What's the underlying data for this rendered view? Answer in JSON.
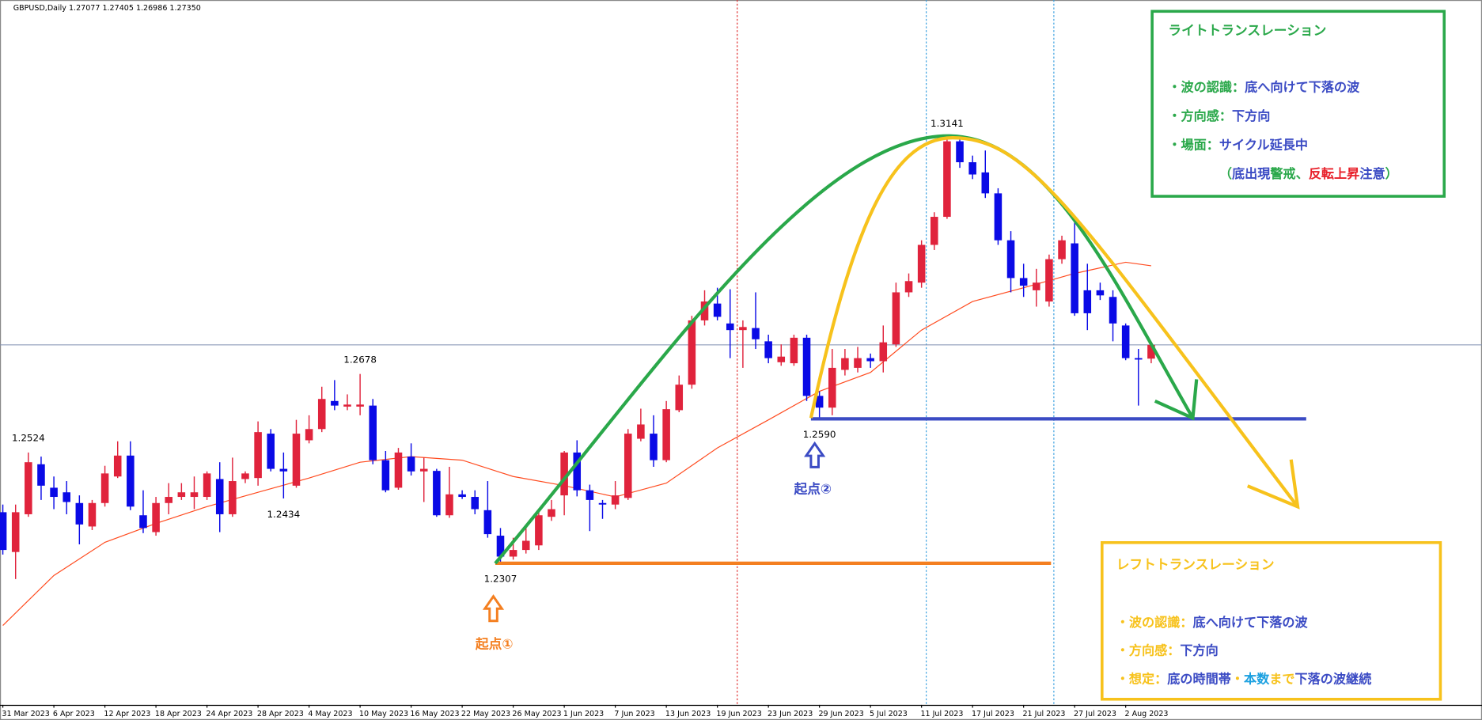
{
  "chart_data": {
    "type": "candlestick",
    "title": "GBPUSD,Daily  1.27077 1.27405 1.26986 1.27350",
    "categories": [
      "31 Mar 2023",
      null,
      null,
      null,
      "6 Apr 2023",
      null,
      null,
      null,
      "12 Apr 2023",
      null,
      null,
      null,
      "18 Apr 2023",
      null,
      null,
      null,
      "24 Apr 2023",
      null,
      null,
      null,
      "28 Apr 2023",
      null,
      null,
      null,
      "4 May 2023",
      null,
      null,
      null,
      "10 May 2023",
      null,
      null,
      null,
      "16 May 2023",
      null,
      null,
      null,
      "22 May 2023",
      null,
      null,
      null,
      "26 May 2023",
      null,
      null,
      null,
      "1 Jun 2023",
      null,
      null,
      null,
      "7 Jun 2023",
      null,
      null,
      null,
      "13 Jun 2023",
      null,
      null,
      null,
      "19 Jun 2023",
      null,
      null,
      null,
      "23 Jun 2023",
      null,
      null,
      null,
      "29 Jun 2023",
      null,
      null,
      null,
      "5 Jul 2023",
      null,
      null,
      null,
      "11 Jul 2023",
      null,
      null,
      null,
      "17 Jul 2023",
      null,
      null,
      null,
      "21 Jul 2023",
      null,
      null,
      null,
      "27 Jul 2023",
      null,
      null,
      null,
      "2 Aug 2023",
      null,
      null
    ],
    "open": [
      1.2407,
      1.2329,
      1.2403,
      1.2501,
      1.2455,
      1.2446,
      1.2425,
      1.2379,
      1.2425,
      1.2477,
      1.2518,
      1.2401,
      1.2368,
      1.2425,
      1.2437,
      1.2437,
      1.2437,
      1.2472,
      1.2403,
      1.2472,
      1.2474,
      1.2561,
      1.2492,
      1.2459,
      1.2548,
      1.257,
      1.2625,
      1.2614,
      1.2614,
      1.2616,
      1.2509,
      1.2455,
      1.2516,
      1.2487,
      1.2488,
      1.2401,
      1.2442,
      1.2437,
      1.2411,
      1.2361,
      1.232,
      1.2333,
      1.2342,
      1.2398,
      1.244,
      1.2524,
      1.245,
      1.2425,
      1.2422,
      1.2435,
      1.2551,
      1.2561,
      1.2509,
      1.2607,
      1.2657,
      1.2783,
      1.2816,
      1.2777,
      1.2764,
      1.2768,
      1.2742,
      1.2701,
      1.2699,
      1.2749,
      1.2635,
      1.2612,
      1.2686,
      1.269,
      1.2709,
      1.2703,
      1.2736,
      1.2838,
      1.2857,
      1.2931,
      1.2986,
      1.3134,
      1.3093,
      1.3073,
      1.3032,
      1.294,
      1.2866,
      1.2842,
      1.282,
      1.2903,
      1.2934,
      1.2842,
      1.2842,
      1.2829,
      1.2773,
      1.2709,
      1.2708
    ],
    "high": [
      1.2422,
      1.2422,
      1.2524,
      1.2516,
      1.2477,
      1.2468,
      1.244,
      1.2431,
      1.2498,
      1.2546,
      1.2546,
      1.245,
      1.2437,
      1.2464,
      1.2464,
      1.2477,
      1.2487,
      1.2505,
      1.2514,
      1.2487,
      1.2585,
      1.257,
      1.2524,
      1.2588,
      1.2597,
      1.2653,
      1.2666,
      1.2638,
      1.2678,
      1.2629,
      1.2527,
      1.2533,
      1.2542,
      1.2514,
      1.2492,
      1.2496,
      1.245,
      1.245,
      1.2468,
      1.2376,
      1.2357,
      1.2383,
      1.2413,
      1.2431,
      1.2527,
      1.2548,
      1.2461,
      1.2431,
      1.2468,
      1.257,
      1.261,
      1.2597,
      1.2625,
      1.2675,
      1.2792,
      1.2842,
      1.2847,
      1.2844,
      1.2783,
      1.2838,
      1.2755,
      1.2736,
      1.2755,
      1.2755,
      1.2644,
      1.2727,
      1.2727,
      1.2731,
      1.2718,
      1.2773,
      1.2857,
      1.2875,
      1.294,
      1.2995,
      1.3141,
      1.3138,
      1.3106,
      1.3116,
      1.3042,
      1.2958,
      1.2894,
      1.2884,
      1.2912,
      1.2949,
      1.298,
      1.2894,
      1.2857,
      1.2842,
      1.2777,
      1.2727,
      1.2741
    ],
    "low": [
      1.2324,
      1.2276,
      1.2398,
      1.2431,
      1.2413,
      1.2403,
      1.2344,
      1.2372,
      1.2418,
      1.2474,
      1.2411,
      1.2366,
      1.2361,
      1.2403,
      1.2431,
      1.2413,
      1.2431,
      1.2368,
      1.2398,
      1.2464,
      1.2459,
      1.2487,
      1.2434,
      1.2455,
      1.2542,
      1.2564,
      1.2607,
      1.2607,
      1.2597,
      1.2501,
      1.2446,
      1.2451,
      1.2479,
      1.2427,
      1.2398,
      1.2396,
      1.2433,
      1.2403,
      1.2357,
      1.2307,
      1.2314,
      1.2326,
      1.2333,
      1.239,
      1.2401,
      1.2438,
      1.237,
      1.2394,
      1.2413,
      1.2431,
      1.2546,
      1.2496,
      1.2505,
      1.2603,
      1.2649,
      1.2773,
      1.2783,
      1.2709,
      1.269,
      1.2727,
      1.2699,
      1.2694,
      1.2694,
      1.2625,
      1.259,
      1.2597,
      1.2675,
      1.2681,
      1.269,
      1.2681,
      1.2731,
      1.2829,
      1.2847,
      1.2921,
      1.2982,
      1.3082,
      1.306,
      1.3023,
      1.2931,
      1.2838,
      1.2829,
      1.281,
      1.281,
      1.2894,
      1.2792,
      1.2764,
      1.2823,
      1.2742,
      1.2705,
      1.2616,
      1.2699
    ],
    "close": [
      1.2333,
      1.2407,
      1.2505,
      1.2459,
      1.2437,
      1.2427,
      1.2383,
      1.2425,
      1.2483,
      1.2518,
      1.2418,
      1.2376,
      1.2425,
      1.2437,
      1.2446,
      1.2446,
      1.2483,
      1.2403,
      1.2468,
      1.2483,
      1.2564,
      1.2492,
      1.2487,
      1.2561,
      1.257,
      1.2629,
      1.2616,
      1.2618,
      1.2618,
      1.2509,
      1.245,
      1.2524,
      1.2487,
      1.2492,
      1.2401,
      1.2442,
      1.2437,
      1.2413,
      1.2364,
      1.232,
      1.2333,
      1.2351,
      1.2401,
      1.2413,
      1.2524,
      1.245,
      1.2431,
      1.2422,
      1.244,
      1.2561,
      1.2579,
      1.2509,
      1.2609,
      1.2657,
      1.2783,
      1.282,
      1.279,
      1.2764,
      1.277,
      1.2746,
      1.2709,
      1.2712,
      1.2749,
      1.2635,
      1.2612,
      1.269,
      1.2709,
      1.2709,
      1.2703,
      1.274,
      1.2838,
      1.286,
      1.2931,
      1.2986,
      1.3134,
      1.3093,
      1.3069,
      1.3032,
      1.294,
      1.2866,
      1.2851,
      1.2857,
      1.2903,
      1.294,
      1.2797,
      1.2797,
      1.2832,
      1.2777,
      1.2709,
      1.2707,
      1.2735
    ],
    "up_color": "#e0233c",
    "down_color": "#0a0ae6",
    "ylim": [
      1.2033,
      1.3411
    ],
    "moving_average": {
      "color": "#ff4b1f",
      "x": [
        0,
        4,
        8,
        12,
        16,
        20,
        24,
        28,
        32,
        36,
        40,
        44,
        48,
        52,
        56,
        60,
        64,
        68,
        72,
        76,
        80,
        84,
        88,
        90
      ],
      "values": [
        1.2185,
        1.2283,
        1.2348,
        1.2385,
        1.2418,
        1.2446,
        1.2474,
        1.2505,
        1.2516,
        1.2509,
        1.2477,
        1.2459,
        1.2437,
        1.2464,
        1.2533,
        1.2588,
        1.2644,
        1.2681,
        1.2764,
        1.282,
        1.2847,
        1.2875,
        1.2897,
        1.289
      ]
    },
    "price_labels": [
      {
        "candle": 2,
        "value": 1.2524
      },
      {
        "candle": 22,
        "value": 1.2434
      },
      {
        "candle": 28,
        "value": 1.2678
      },
      {
        "candle": 39,
        "value": 1.2307
      },
      {
        "candle": 64,
        "value": 1.259,
        "label": "1.2590"
      },
      {
        "candle": 74,
        "value": 1.3141
      }
    ],
    "origin_labels": [
      {
        "text": "起点①",
        "color": "#f47f20"
      },
      {
        "text": "起点②",
        "color": "#3b4bc4"
      }
    ],
    "right_box": {
      "color": "#2aa84a",
      "title": "ライトトランスレーション",
      "lines": [
        [
          {
            "text": "・波の認識：",
            "color": "#2aa84a"
          },
          {
            "text": "底へ向けて下落の波",
            "color": "#3b4bc4"
          }
        ],
        [
          {
            "text": "・方向感：",
            "color": "#2aa84a"
          },
          {
            "text": "下方向",
            "color": "#3b4bc4"
          }
        ],
        [
          {
            "text": "・場面：",
            "color": "#2aa84a"
          },
          {
            "text": "サイクル延長中",
            "color": "#3b4bc4"
          }
        ],
        [
          {
            "text": "（",
            "color": "#2aa84a"
          },
          {
            "text": "底出現",
            "color": "#3b4bc4"
          },
          {
            "text": "警戒、",
            "color": "#2aa84a"
          },
          {
            "text": "反転上昇",
            "color": "#e8202a"
          },
          {
            "text": "注意",
            "color": "#3b4bc4"
          },
          {
            "text": "）",
            "color": "#2aa84a"
          }
        ]
      ]
    },
    "left_box": {
      "color": "#f7c21c",
      "title": "レフトトランスレーション",
      "lines": [
        [
          {
            "text": "・波の認識：",
            "color": "#f7c21c"
          },
          {
            "text": "底へ向けて下落の波",
            "color": "#3b4bc4"
          }
        ],
        [
          {
            "text": "・方向感：",
            "color": "#f7c21c"
          },
          {
            "text": "下方向",
            "color": "#3b4bc4"
          }
        ],
        [
          {
            "text": "・想定：",
            "color": "#f7c21c"
          },
          {
            "text": "底の時間帯",
            "color": "#3b4bc4"
          },
          {
            "text": "・",
            "color": "#f7c21c"
          },
          {
            "text": "本数",
            "color": "#1aa0e0"
          },
          {
            "text": "まで",
            "color": "#f7c21c"
          },
          {
            "text": "下落の波継続",
            "color": "#3b4bc4"
          }
        ]
      ]
    }
  }
}
